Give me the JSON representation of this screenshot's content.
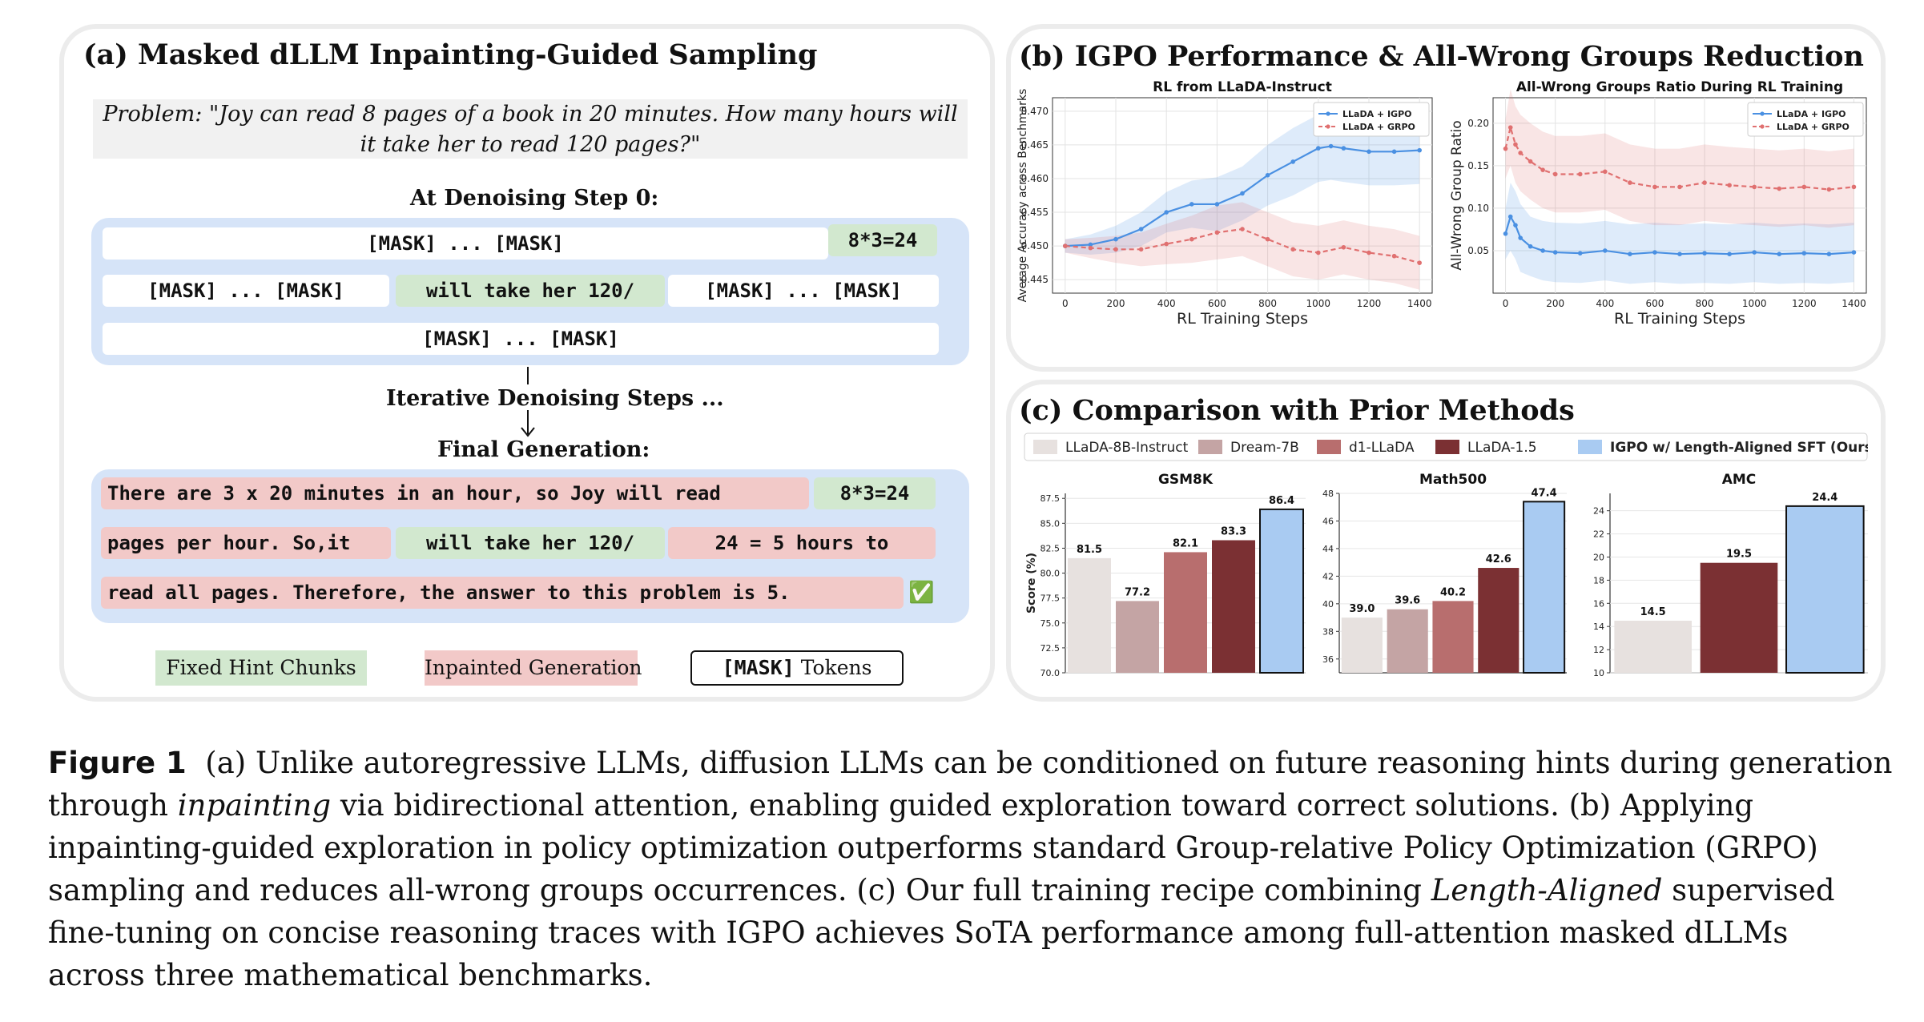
{
  "panel_a": {
    "title": "(a) Masked dLLM Inpainting-Guided Sampling",
    "problem": "Problem: \"Joy can read 8 pages of a book in 20 minutes. How many hours will it take her to read 120 pages?\"",
    "step0_label": "At Denoising Step 0:",
    "step0_rows": [
      [
        "[MASK] ... [MASK]",
        "8*3=24"
      ],
      [
        "[MASK] ... [MASK]",
        "will take her 120/",
        "[MASK] ... [MASK]"
      ],
      [
        "[MASK] ... [MASK]"
      ]
    ],
    "iter_label": "Iterative Denoising Steps ...",
    "final_label": "Final Generation:",
    "final_rows": [
      [
        "There are 3 x 20 minutes in an hour, so Joy will read",
        "8*3=24"
      ],
      [
        "pages per hour. So,it",
        "will take her 120/",
        "24 = 5 hours to"
      ],
      [
        "read all pages. Therefore, the answer to this problem is 5.",
        "✅"
      ]
    ],
    "legend": [
      "Fixed Hint Chunks",
      "Inpainted Generation",
      "[MASK]",
      " Tokens"
    ],
    "colors": {
      "hint": "#d2e8cf",
      "inpaint": "#f2c9c8",
      "block": "#d6e4f8"
    }
  },
  "panel_b": {
    "title": "(b) IGPO Performance & All-Wrong Groups Reduction",
    "legend": [
      "LLaDA + IGPO",
      "LLaDA + GRPO"
    ]
  },
  "panel_c": {
    "title": "(c) Comparison with Prior Methods",
    "legend": [
      "LLaDA-8B-Instruct",
      "Dream-7B",
      "d1-LLaDA",
      "LLaDA-1.5",
      "IGPO w/ Length-Aligned SFT (Ours)"
    ],
    "colors": [
      "#e7e1df",
      "#c4a4a4",
      "#b86e6e",
      "#7b3033",
      "#a9cbf2"
    ],
    "ylabel": "Score (%)"
  },
  "caption": {
    "lines": [
      {
        "label": "Figure 1",
        "text": "(a) Unlike autoregressive LLMs, diffusion LLMs can be conditioned on future reasoning hints during generation"
      },
      {
        "pre": "through ",
        "em": "inpainting",
        "post": " via bidirectional attention, enabling guided exploration toward correct solutions. (b) Applying"
      },
      {
        "text": "inpainting-guided exploration in policy optimization outperforms standard Group-relative Policy Optimization (GRPO)"
      },
      {
        "pre": "sampling and reduces all-wrong groups occurrences. (c) Our full training recipe combining ",
        "em": "Length-Aligned",
        "post": " supervised"
      },
      {
        "text": "fine-tuning on concise reasoning traces with IGPO achieves SoTA performance among full-attention masked dLLMs"
      },
      {
        "text": "across three mathematical benchmarks."
      }
    ]
  },
  "chart_data": [
    {
      "type": "line",
      "title": "RL from LLaDA-Instruct",
      "xlabel": "RL Training Steps",
      "ylabel": "Average Accuracy across Benchmarks",
      "xlim": [
        -50,
        1450
      ],
      "ylim": [
        0.443,
        0.472
      ],
      "xticks": [
        0,
        200,
        400,
        600,
        800,
        1000,
        1200,
        1400
      ],
      "yticks": [
        0.445,
        0.45,
        0.455,
        0.46,
        0.465,
        0.47
      ],
      "grid": true,
      "legend_position": "top-right",
      "series": [
        {
          "name": "LLaDA + IGPO",
          "color": "#4a90e2",
          "x": [
            0,
            100,
            200,
            300,
            400,
            500,
            600,
            700,
            800,
            900,
            1000,
            1050,
            1100,
            1200,
            1300,
            1400
          ],
          "y": [
            0.45,
            0.4502,
            0.451,
            0.4525,
            0.455,
            0.4562,
            0.4562,
            0.4578,
            0.4605,
            0.4625,
            0.4645,
            0.4648,
            0.4645,
            0.464,
            0.464,
            0.4642
          ],
          "band": [
            0.001,
            0.0015,
            0.002,
            0.0025,
            0.003,
            0.0035,
            0.004,
            0.004,
            0.0045,
            0.005,
            0.005,
            0.005,
            0.005,
            0.005,
            0.005,
            0.005
          ]
        },
        {
          "name": "LLaDA + GRPO",
          "color": "#e07070",
          "x": [
            0,
            100,
            200,
            300,
            400,
            500,
            600,
            700,
            800,
            900,
            1000,
            1100,
            1200,
            1300,
            1400
          ],
          "y": [
            0.45,
            0.4497,
            0.4495,
            0.4495,
            0.4503,
            0.451,
            0.452,
            0.4525,
            0.451,
            0.4495,
            0.449,
            0.4498,
            0.449,
            0.4485,
            0.4475
          ],
          "band": [
            0.001,
            0.0015,
            0.002,
            0.0025,
            0.003,
            0.0035,
            0.004,
            0.004,
            0.004,
            0.004,
            0.004,
            0.004,
            0.004,
            0.004,
            0.004
          ]
        }
      ]
    },
    {
      "type": "line",
      "title": "All-Wrong Groups Ratio During RL Training",
      "xlabel": "RL Training Steps",
      "ylabel": "All-Wrong Group Ratio",
      "xlim": [
        -50,
        1450
      ],
      "ylim": [
        0.0,
        0.23
      ],
      "xticks": [
        0,
        200,
        400,
        600,
        800,
        1000,
        1200,
        1400
      ],
      "yticks": [
        0.05,
        0.1,
        0.15,
        0.2
      ],
      "grid": true,
      "legend_position": "top-right",
      "series": [
        {
          "name": "LLaDA + IGPO",
          "color": "#4a90e2",
          "x": [
            0,
            20,
            40,
            60,
            100,
            150,
            200,
            300,
            400,
            500,
            600,
            700,
            800,
            900,
            1000,
            1100,
            1200,
            1300,
            1400
          ],
          "y": [
            0.07,
            0.09,
            0.08,
            0.065,
            0.055,
            0.05,
            0.048,
            0.047,
            0.05,
            0.046,
            0.048,
            0.046,
            0.047,
            0.046,
            0.048,
            0.046,
            0.047,
            0.046,
            0.048
          ],
          "band": [
            0.03,
            0.04,
            0.04,
            0.04,
            0.035,
            0.035,
            0.035,
            0.035,
            0.035,
            0.035,
            0.035,
            0.035,
            0.035,
            0.035,
            0.035,
            0.035,
            0.035,
            0.035,
            0.035
          ]
        },
        {
          "name": "LLaDA + GRPO",
          "color": "#e07070",
          "x": [
            0,
            20,
            40,
            60,
            100,
            150,
            200,
            300,
            400,
            500,
            600,
            700,
            800,
            900,
            1000,
            1100,
            1200,
            1300,
            1400
          ],
          "y": [
            0.17,
            0.195,
            0.175,
            0.165,
            0.155,
            0.145,
            0.14,
            0.14,
            0.143,
            0.13,
            0.125,
            0.125,
            0.13,
            0.127,
            0.125,
            0.123,
            0.125,
            0.122,
            0.125
          ],
          "band": [
            0.035,
            0.045,
            0.045,
            0.045,
            0.045,
            0.045,
            0.045,
            0.045,
            0.045,
            0.045,
            0.045,
            0.045,
            0.045,
            0.045,
            0.045,
            0.045,
            0.045,
            0.045,
            0.045
          ]
        }
      ]
    },
    {
      "type": "bar",
      "title": "GSM8K",
      "ylim": [
        70.0,
        88.0
      ],
      "yticks": [
        "70.0",
        "72.5",
        "75.0",
        "77.5",
        "80.0",
        "82.5",
        "85.0",
        "87.5"
      ],
      "categories": [
        "LLaDA-8B-Instruct",
        "Dream-7B",
        "d1-LLaDA",
        "LLaDA-1.5",
        "IGPO w/ Length-Aligned SFT (Ours)"
      ],
      "values": [
        81.5,
        77.2,
        82.1,
        83.3,
        86.4
      ],
      "labels": [
        "81.5",
        "77.2",
        "82.1",
        "83.3",
        "86.4"
      ]
    },
    {
      "type": "bar",
      "title": "Math500",
      "ylim": [
        35.0,
        48.0
      ],
      "yticks": [
        "36",
        "38",
        "40",
        "42",
        "44",
        "46",
        "48"
      ],
      "categories": [
        "LLaDA-8B-Instruct",
        "Dream-7B",
        "d1-LLaDA",
        "LLaDA-1.5",
        "IGPO w/ Length-Aligned SFT (Ours)"
      ],
      "values": [
        39.0,
        39.6,
        40.2,
        42.6,
        47.4
      ],
      "labels": [
        "39.0",
        "39.6",
        "40.2",
        "42.6",
        "47.4"
      ]
    },
    {
      "type": "bar",
      "title": "AMC",
      "ylim": [
        10.0,
        25.5
      ],
      "yticks": [
        "10",
        "12",
        "14",
        "16",
        "18",
        "20",
        "22",
        "24"
      ],
      "categories": [
        "LLaDA-8B-Instruct",
        "LLaDA-1.5",
        "IGPO w/ Length-Aligned SFT (Ours)"
      ],
      "values": [
        14.5,
        19.5,
        24.4
      ],
      "labels": [
        "14.5",
        "19.5",
        "24.4"
      ],
      "color_index": [
        0,
        3,
        4
      ]
    }
  ]
}
